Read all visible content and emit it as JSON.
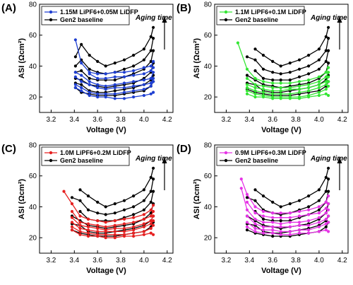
{
  "chart_data": [
    {
      "panel": "(A)",
      "type": "line",
      "xlabel": "Voltage (V)",
      "ylabel": "ASI (Ωcm²)",
      "xlim": [
        3.1,
        4.25
      ],
      "ylim": [
        10,
        80
      ],
      "xticks": [
        "3.2",
        "3.4",
        "3.6",
        "3.8",
        "4.0",
        "4.2"
      ],
      "yticks": [
        "20",
        "40",
        "60",
        "80"
      ],
      "legend_position": "top-left",
      "annotation": "Aging time",
      "series_color": "#1f3fd1",
      "baseline_color": "#000000",
      "legend": [
        "1.15M LiPF6+0.05M LiDFP",
        "Gen2 baseline"
      ],
      "x": [
        3.41,
        3.46,
        3.53,
        3.6,
        3.67,
        3.75,
        3.83,
        3.91,
        4.0,
        4.06,
        4.08
      ],
      "series": [
        {
          "name": "1.15M LiPF6+0.05M LiDFP",
          "values": [
            57,
            42,
            36,
            35,
            35,
            36,
            36,
            37,
            39,
            40,
            43
          ]
        },
        {
          "values": [
            null,
            null,
            35,
            32,
            32,
            33,
            33,
            34,
            35,
            37,
            39
          ]
        },
        {
          "values": [
            36,
            34,
            30,
            28,
            27,
            28,
            29,
            30,
            31,
            32,
            36
          ]
        },
        {
          "values": [
            33,
            30,
            28,
            26,
            25,
            26,
            26,
            27,
            28,
            29,
            32
          ]
        },
        {
          "values": [
            28,
            26,
            23,
            22,
            22,
            22,
            23,
            24,
            25,
            27,
            30
          ]
        },
        {
          "values": [
            26,
            24,
            21,
            20,
            20,
            19,
            19,
            20,
            21,
            22,
            23
          ]
        }
      ],
      "baseline": [
        {
          "values": [
            46,
            54,
            47,
            43,
            40,
            42,
            44,
            47,
            51,
            59,
            65
          ]
        },
        {
          "values": [
            40,
            44,
            38,
            36,
            35,
            36,
            38,
            40,
            44,
            50,
            58
          ]
        },
        {
          "values": [
            36,
            37,
            32,
            31,
            31,
            31,
            33,
            35,
            38,
            43,
            50
          ]
        },
        {
          "values": [
            32,
            31,
            28,
            27,
            26,
            27,
            28,
            29,
            32,
            36,
            42
          ]
        },
        {
          "values": [
            29,
            28,
            24,
            23,
            23,
            24,
            25,
            26,
            28,
            31,
            34
          ]
        },
        {
          "values": [
            26,
            23,
            22,
            21,
            21,
            21,
            22,
            23,
            24,
            27,
            30
          ]
        }
      ]
    },
    {
      "panel": "(B)",
      "type": "line",
      "xlabel": "Voltage (V)",
      "ylabel": "ASI (Ωcm²)",
      "xlim": [
        3.1,
        4.25
      ],
      "ylim": [
        10,
        80
      ],
      "xticks": [
        "3.2",
        "3.4",
        "3.6",
        "3.8",
        "4.0",
        "4.2"
      ],
      "yticks": [
        "20",
        "40",
        "60",
        "80"
      ],
      "legend_position": "top-left",
      "annotation": "Aging time",
      "series_color": "#33e633",
      "baseline_color": "#000000",
      "legend": [
        "1.1M LiPF6+0.1M LiDFP",
        "Gen2 baseline"
      ],
      "x": [
        3.3,
        3.38,
        3.45,
        3.52,
        3.6,
        3.67,
        3.75,
        3.83,
        3.91,
        4.0,
        4.06,
        4.08
      ],
      "series": [
        {
          "name": "1.1M LiPF6+0.1M LiDFP",
          "values": [
            55,
            38,
            32,
            30,
            29,
            29,
            29,
            30,
            31,
            33,
            36,
            39
          ]
        },
        {
          "values": [
            null,
            32,
            28,
            27,
            26,
            26,
            26,
            27,
            28,
            30,
            33,
            36
          ]
        },
        {
          "values": [
            null,
            28,
            26,
            25,
            24,
            24,
            25,
            25,
            26,
            28,
            30,
            33
          ]
        },
        {
          "values": [
            null,
            26,
            24,
            23,
            22,
            22,
            22,
            23,
            24,
            26,
            28,
            30
          ]
        },
        {
          "values": [
            null,
            24,
            22,
            21,
            20,
            20,
            20,
            20,
            21,
            23,
            25,
            27
          ]
        },
        {
          "values": [
            null,
            22,
            20,
            20,
            19,
            19,
            19,
            19,
            20,
            21,
            22,
            21
          ]
        }
      ],
      "baseline": [
        {
          "values": [
            null,
            null,
            51,
            47,
            43,
            40,
            42,
            44,
            47,
            51,
            59,
            65
          ]
        },
        {
          "values": [
            null,
            46,
            44,
            38,
            36,
            35,
            36,
            38,
            40,
            44,
            50,
            58
          ]
        },
        {
          "values": [
            null,
            null,
            37,
            32,
            31,
            31,
            31,
            33,
            35,
            38,
            43,
            50
          ]
        },
        {
          "values": [
            null,
            34,
            31,
            28,
            27,
            26,
            27,
            28,
            29,
            32,
            36,
            42
          ]
        },
        {
          "values": [
            null,
            29,
            28,
            24,
            23,
            23,
            24,
            25,
            26,
            28,
            31,
            34
          ]
        },
        {
          "values": [
            null,
            25,
            23,
            22,
            21,
            21,
            21,
            22,
            23,
            24,
            27,
            30
          ]
        }
      ]
    },
    {
      "panel": "(C)",
      "type": "line",
      "xlabel": "Voltage (V)",
      "ylabel": "ASI (Ωcm²)",
      "xlim": [
        3.1,
        4.25
      ],
      "ylim": [
        10,
        80
      ],
      "xticks": [
        "3.2",
        "3.4",
        "3.6",
        "3.8",
        "4.0",
        "4.2"
      ],
      "yticks": [
        "20",
        "40",
        "60",
        "80"
      ],
      "legend_position": "top-left",
      "annotation": "Aging time",
      "series_color": "#e62020",
      "baseline_color": "#000000",
      "legend": [
        "1.0M LiPF6+0.2M LiDFP",
        "Gen2 baseline"
      ],
      "x": [
        3.31,
        3.38,
        3.45,
        3.52,
        3.6,
        3.67,
        3.75,
        3.83,
        3.91,
        4.0,
        4.06,
        4.08
      ],
      "series": [
        {
          "name": "1.0M LiPF6+0.2M LiDFP",
          "values": [
            50,
            42,
            34,
            32,
            31,
            30,
            31,
            32,
            33,
            35,
            38,
            41
          ]
        },
        {
          "values": [
            null,
            37,
            30,
            29,
            28,
            27,
            28,
            29,
            30,
            32,
            34,
            37
          ]
        },
        {
          "values": [
            null,
            33,
            28,
            27,
            26,
            25,
            26,
            26,
            27,
            29,
            31,
            34
          ]
        },
        {
          "values": [
            null,
            30,
            26,
            25,
            24,
            24,
            24,
            24,
            25,
            27,
            29,
            31
          ]
        },
        {
          "values": [
            null,
            27,
            24,
            23,
            22,
            22,
            22,
            22,
            23,
            24,
            26,
            28
          ]
        },
        {
          "values": [
            null,
            25,
            22,
            21,
            21,
            20,
            20,
            21,
            21,
            22,
            23,
            22
          ]
        }
      ],
      "baseline": [
        {
          "values": [
            null,
            null,
            51,
            47,
            43,
            40,
            42,
            44,
            47,
            51,
            59,
            65
          ]
        },
        {
          "values": [
            null,
            46,
            44,
            38,
            36,
            35,
            36,
            38,
            40,
            44,
            50,
            58
          ]
        },
        {
          "values": [
            null,
            null,
            37,
            32,
            31,
            31,
            31,
            33,
            35,
            38,
            43,
            50
          ]
        },
        {
          "values": [
            null,
            34,
            31,
            28,
            27,
            26,
            27,
            28,
            29,
            32,
            36,
            42
          ]
        },
        {
          "values": [
            null,
            29,
            28,
            24,
            23,
            23,
            24,
            25,
            26,
            28,
            31,
            34
          ]
        },
        {
          "values": [
            null,
            25,
            23,
            22,
            21,
            21,
            21,
            22,
            23,
            24,
            27,
            30
          ]
        }
      ]
    },
    {
      "panel": "(D)",
      "type": "line",
      "xlabel": "Voltage (V)",
      "ylabel": "ASI (Ωcm²)",
      "xlim": [
        3.1,
        4.25
      ],
      "ylim": [
        10,
        80
      ],
      "xticks": [
        "3.2",
        "3.4",
        "3.6",
        "3.8",
        "4.0",
        "4.2"
      ],
      "yticks": [
        "20",
        "40",
        "60",
        "80"
      ],
      "legend_position": "top-left",
      "annotation": "Aging time",
      "series_color": "#e633e6",
      "baseline_color": "#000000",
      "legend": [
        "0.9M LiPF6+0.3M LiDFP",
        "Gen2 baseline"
      ],
      "x": [
        3.33,
        3.38,
        3.45,
        3.52,
        3.6,
        3.67,
        3.75,
        3.83,
        3.91,
        4.0,
        4.06,
        4.08
      ],
      "series": [
        {
          "name": "0.9M LiPF6+0.3M LiDFP",
          "values": [
            58,
            48,
            40,
            37,
            36,
            36,
            36,
            37,
            38,
            40,
            43,
            47
          ]
        },
        {
          "values": [
            null,
            43,
            36,
            34,
            33,
            33,
            33,
            34,
            35,
            36,
            39,
            42
          ]
        },
        {
          "values": [
            52,
            38,
            32,
            30,
            30,
            29,
            30,
            30,
            31,
            33,
            36,
            38
          ]
        },
        {
          "values": [
            null,
            34,
            29,
            27,
            27,
            27,
            27,
            28,
            28,
            30,
            32,
            34
          ]
        },
        {
          "values": [
            null,
            30,
            26,
            25,
            25,
            24,
            24,
            25,
            25,
            27,
            29,
            30
          ]
        },
        {
          "values": [
            null,
            27,
            24,
            23,
            23,
            22,
            22,
            23,
            23,
            24,
            25,
            24
          ]
        }
      ],
      "baseline": [
        {
          "values": [
            null,
            null,
            51,
            47,
            43,
            40,
            42,
            44,
            47,
            51,
            59,
            65
          ]
        },
        {
          "values": [
            null,
            46,
            44,
            38,
            36,
            35,
            36,
            38,
            40,
            44,
            50,
            58
          ]
        },
        {
          "values": [
            null,
            null,
            37,
            32,
            31,
            31,
            31,
            33,
            35,
            38,
            43,
            50
          ]
        },
        {
          "values": [
            null,
            34,
            31,
            28,
            27,
            26,
            27,
            28,
            29,
            32,
            36,
            42
          ]
        },
        {
          "values": [
            null,
            29,
            28,
            24,
            23,
            23,
            24,
            25,
            26,
            28,
            31,
            34
          ]
        },
        {
          "values": [
            null,
            25,
            23,
            22,
            21,
            21,
            21,
            22,
            23,
            24,
            27,
            30
          ]
        }
      ]
    }
  ]
}
